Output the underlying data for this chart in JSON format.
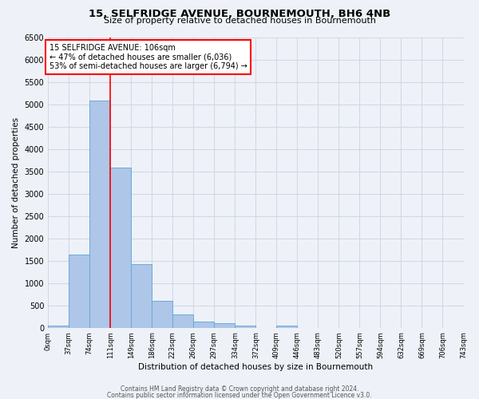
{
  "title": "15, SELFRIDGE AVENUE, BOURNEMOUTH, BH6 4NB",
  "subtitle": "Size of property relative to detached houses in Bournemouth",
  "xlabel": "Distribution of detached houses by size in Bournemouth",
  "ylabel": "Number of detached properties",
  "bin_edges": [
    0,
    37,
    74,
    111,
    148,
    185,
    222,
    259,
    296,
    333,
    370,
    407,
    444,
    481,
    518,
    555,
    592,
    629,
    666,
    703,
    740
  ],
  "bin_labels": [
    "0sqm",
    "37sqm",
    "74sqm",
    "111sqm",
    "149sqm",
    "186sqm",
    "223sqm",
    "260sqm",
    "297sqm",
    "334sqm",
    "372sqm",
    "409sqm",
    "446sqm",
    "483sqm",
    "520sqm",
    "557sqm",
    "594sqm",
    "632sqm",
    "669sqm",
    "706sqm",
    "743sqm"
  ],
  "bar_heights": [
    50,
    1630,
    5080,
    3580,
    1420,
    610,
    300,
    140,
    100,
    50,
    0,
    50,
    0,
    0,
    0,
    0,
    0,
    0,
    0,
    0
  ],
  "bar_color": "#aec6e8",
  "bar_edge_color": "#6aaad4",
  "vline_x": 111,
  "vline_color": "red",
  "annotation_text": "15 SELFRIDGE AVENUE: 106sqm\n← 47% of detached houses are smaller (6,036)\n53% of semi-detached houses are larger (6,794) →",
  "annotation_box_color": "white",
  "annotation_box_edge_color": "red",
  "ylim": [
    0,
    6500
  ],
  "yticks": [
    0,
    500,
    1000,
    1500,
    2000,
    2500,
    3000,
    3500,
    4000,
    4500,
    5000,
    5500,
    6000,
    6500
  ],
  "footer1": "Contains HM Land Registry data © Crown copyright and database right 2024.",
  "footer2": "Contains public sector information licensed under the Open Government Licence v3.0.",
  "background_color": "#eef2f8",
  "plot_background": "#eef2f8",
  "grid_color": "#d0d8e8"
}
